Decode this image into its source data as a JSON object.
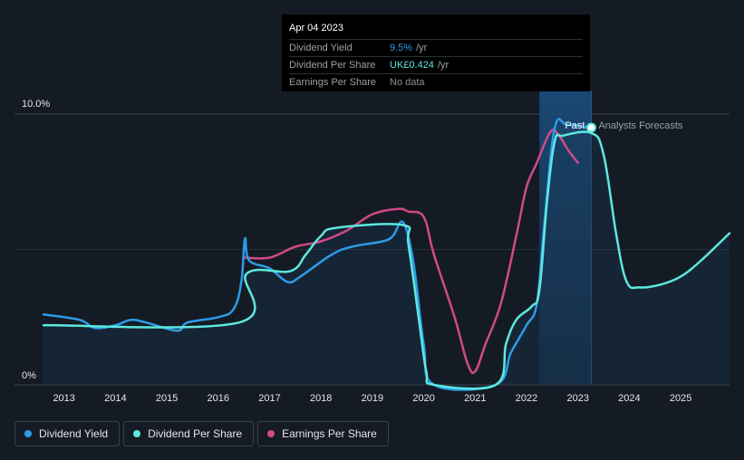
{
  "tooltip": {
    "date": "Apr 04 2023",
    "rows": [
      {
        "label": "Dividend Yield",
        "value": "9.5%",
        "unit": "/yr",
        "color": "#2e9be8"
      },
      {
        "label": "Dividend Per Share",
        "value": "UK£0.424",
        "unit": "/yr",
        "color": "#5de8df"
      },
      {
        "label": "Earnings Per Share",
        "value": "No data",
        "unit": "",
        "color": "#8a8f96"
      }
    ]
  },
  "regions": {
    "past_label": "Past",
    "forecast_label": "Analysts Forecasts"
  },
  "legend": [
    {
      "label": "Dividend Yield",
      "color": "#2e9be8"
    },
    {
      "label": "Dividend Per Share",
      "color": "#5de8df"
    },
    {
      "label": "Earnings Per Share",
      "color": "#d04a88"
    }
  ],
  "chart_data": {
    "type": "line",
    "y_tick_labels": [
      "10.0%",
      "0%"
    ],
    "ylim": [
      0,
      10
    ],
    "xlim": [
      2012.6,
      2025.95
    ],
    "x_tick_labels": [
      "2013",
      "2014",
      "2015",
      "2016",
      "2017",
      "2018",
      "2019",
      "2020",
      "2021",
      "2022",
      "2023",
      "2024",
      "2025"
    ],
    "past_range": [
      2022.25,
      2023.26
    ],
    "marker": {
      "x": 2023.26,
      "y": 9.5
    },
    "series": [
      {
        "name": "Dividend Yield",
        "color": "#2e9be8",
        "points": [
          [
            2012.6,
            2.6
          ],
          [
            2013.3,
            2.4
          ],
          [
            2013.6,
            2.1
          ],
          [
            2014.0,
            2.2
          ],
          [
            2014.3,
            2.4
          ],
          [
            2014.6,
            2.3
          ],
          [
            2015.2,
            2.0
          ],
          [
            2015.4,
            2.3
          ],
          [
            2016.0,
            2.5
          ],
          [
            2016.3,
            2.8
          ],
          [
            2016.45,
            3.8
          ],
          [
            2016.52,
            5.4
          ],
          [
            2016.6,
            4.6
          ],
          [
            2017.0,
            4.3
          ],
          [
            2017.35,
            3.8
          ],
          [
            2017.6,
            4.0
          ],
          [
            2018.2,
            4.8
          ],
          [
            2018.6,
            5.1
          ],
          [
            2019.2,
            5.3
          ],
          [
            2019.4,
            5.5
          ],
          [
            2019.6,
            6.0
          ],
          [
            2019.8,
            4.5
          ],
          [
            2020.0,
            1.5
          ],
          [
            2020.2,
            0
          ],
          [
            2021.4,
            0
          ],
          [
            2021.7,
            1.2
          ],
          [
            2022.0,
            2.2
          ],
          [
            2022.2,
            3.0
          ],
          [
            2022.35,
            6.0
          ],
          [
            2022.55,
            9.5
          ],
          [
            2022.8,
            9.6
          ],
          [
            2023.26,
            9.5
          ]
        ]
      },
      {
        "name": "Dividend Per Share",
        "color": "#5de8df",
        "points": [
          [
            2012.6,
            2.2
          ],
          [
            2016.4,
            2.3
          ],
          [
            2016.55,
            4.1
          ],
          [
            2017.4,
            4.2
          ],
          [
            2017.7,
            4.8
          ],
          [
            2018.0,
            5.5
          ],
          [
            2018.3,
            5.8
          ],
          [
            2019.6,
            5.9
          ],
          [
            2019.7,
            5.2
          ],
          [
            2019.9,
            2.5
          ],
          [
            2020.05,
            0.5
          ],
          [
            2020.2,
            0
          ],
          [
            2021.4,
            0
          ],
          [
            2021.6,
            1.5
          ],
          [
            2021.8,
            2.4
          ],
          [
            2022.1,
            2.9
          ],
          [
            2022.25,
            3.5
          ],
          [
            2022.4,
            6.8
          ],
          [
            2022.55,
            9.0
          ],
          [
            2022.7,
            9.2
          ],
          [
            2023.26,
            9.3
          ],
          [
            2023.5,
            8.5
          ],
          [
            2023.75,
            5.5
          ],
          [
            2023.95,
            3.8
          ],
          [
            2024.2,
            3.6
          ],
          [
            2024.6,
            3.7
          ],
          [
            2025.0,
            4.0
          ],
          [
            2025.4,
            4.6
          ],
          [
            2025.95,
            5.6
          ]
        ]
      },
      {
        "name": "Earnings Per Share",
        "color": "#d04a88",
        "points": [
          [
            2016.5,
            4.7
          ],
          [
            2017.0,
            4.7
          ],
          [
            2017.5,
            5.1
          ],
          [
            2018.0,
            5.3
          ],
          [
            2018.5,
            5.7
          ],
          [
            2019.0,
            6.3
          ],
          [
            2019.5,
            6.5
          ],
          [
            2019.7,
            6.4
          ],
          [
            2020.0,
            6.2
          ],
          [
            2020.2,
            4.8
          ],
          [
            2020.6,
            2.5
          ],
          [
            2020.85,
            0.8
          ],
          [
            2021.0,
            0.5
          ],
          [
            2021.2,
            1.5
          ],
          [
            2021.5,
            3.0
          ],
          [
            2021.8,
            5.5
          ],
          [
            2022.0,
            7.3
          ],
          [
            2022.2,
            8.2
          ],
          [
            2022.45,
            9.3
          ],
          [
            2022.6,
            9.3
          ],
          [
            2022.8,
            8.7
          ],
          [
            2023.0,
            8.2
          ]
        ]
      }
    ]
  }
}
